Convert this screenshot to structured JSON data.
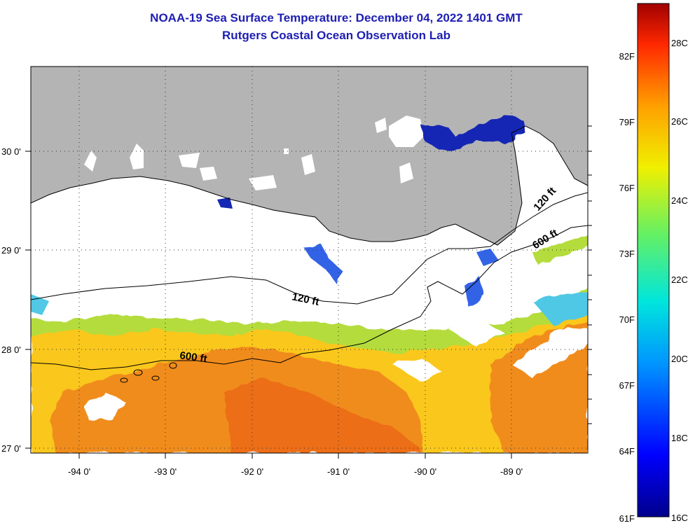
{
  "title": {
    "line1": "NOAA-19 Sea Surface Temperature:  December 04, 2022 1401 GMT",
    "line2": "Rutgers Coastal Ocean Observation Lab"
  },
  "map": {
    "lat_labels": [
      "27 0'",
      "28 0'",
      "29 0'",
      "30 0'"
    ],
    "lon_labels": [
      "-94 0'",
      "-93 0'",
      "-92 0'",
      "-91 0'",
      "-90 0'",
      "-89 0'"
    ],
    "depth_labels": [
      "120 ft",
      "600 ft",
      "120 ft",
      "600 ft"
    ],
    "colors": {
      "land": "#b4b4b4",
      "cloud": "#ffffff",
      "warm": "#f08c1e",
      "mid": "#fac81e",
      "cool": "#b4dc3c",
      "cold": "#1428c8"
    }
  },
  "colorbar": {
    "fahrenheit_labels": [
      "82F",
      "79F",
      "76F",
      "73F",
      "70F",
      "67F",
      "64F",
      "61F"
    ],
    "celsius_labels": [
      "28C",
      "26C",
      "24C",
      "22C",
      "20C",
      "18C",
      "16C"
    ],
    "range_c": [
      16,
      29
    ],
    "colors": [
      "#00008c",
      "#0000ff",
      "#0096ff",
      "#00e6dc",
      "#64f064",
      "#f0f000",
      "#ffa000",
      "#ff2800",
      "#a00000"
    ]
  }
}
